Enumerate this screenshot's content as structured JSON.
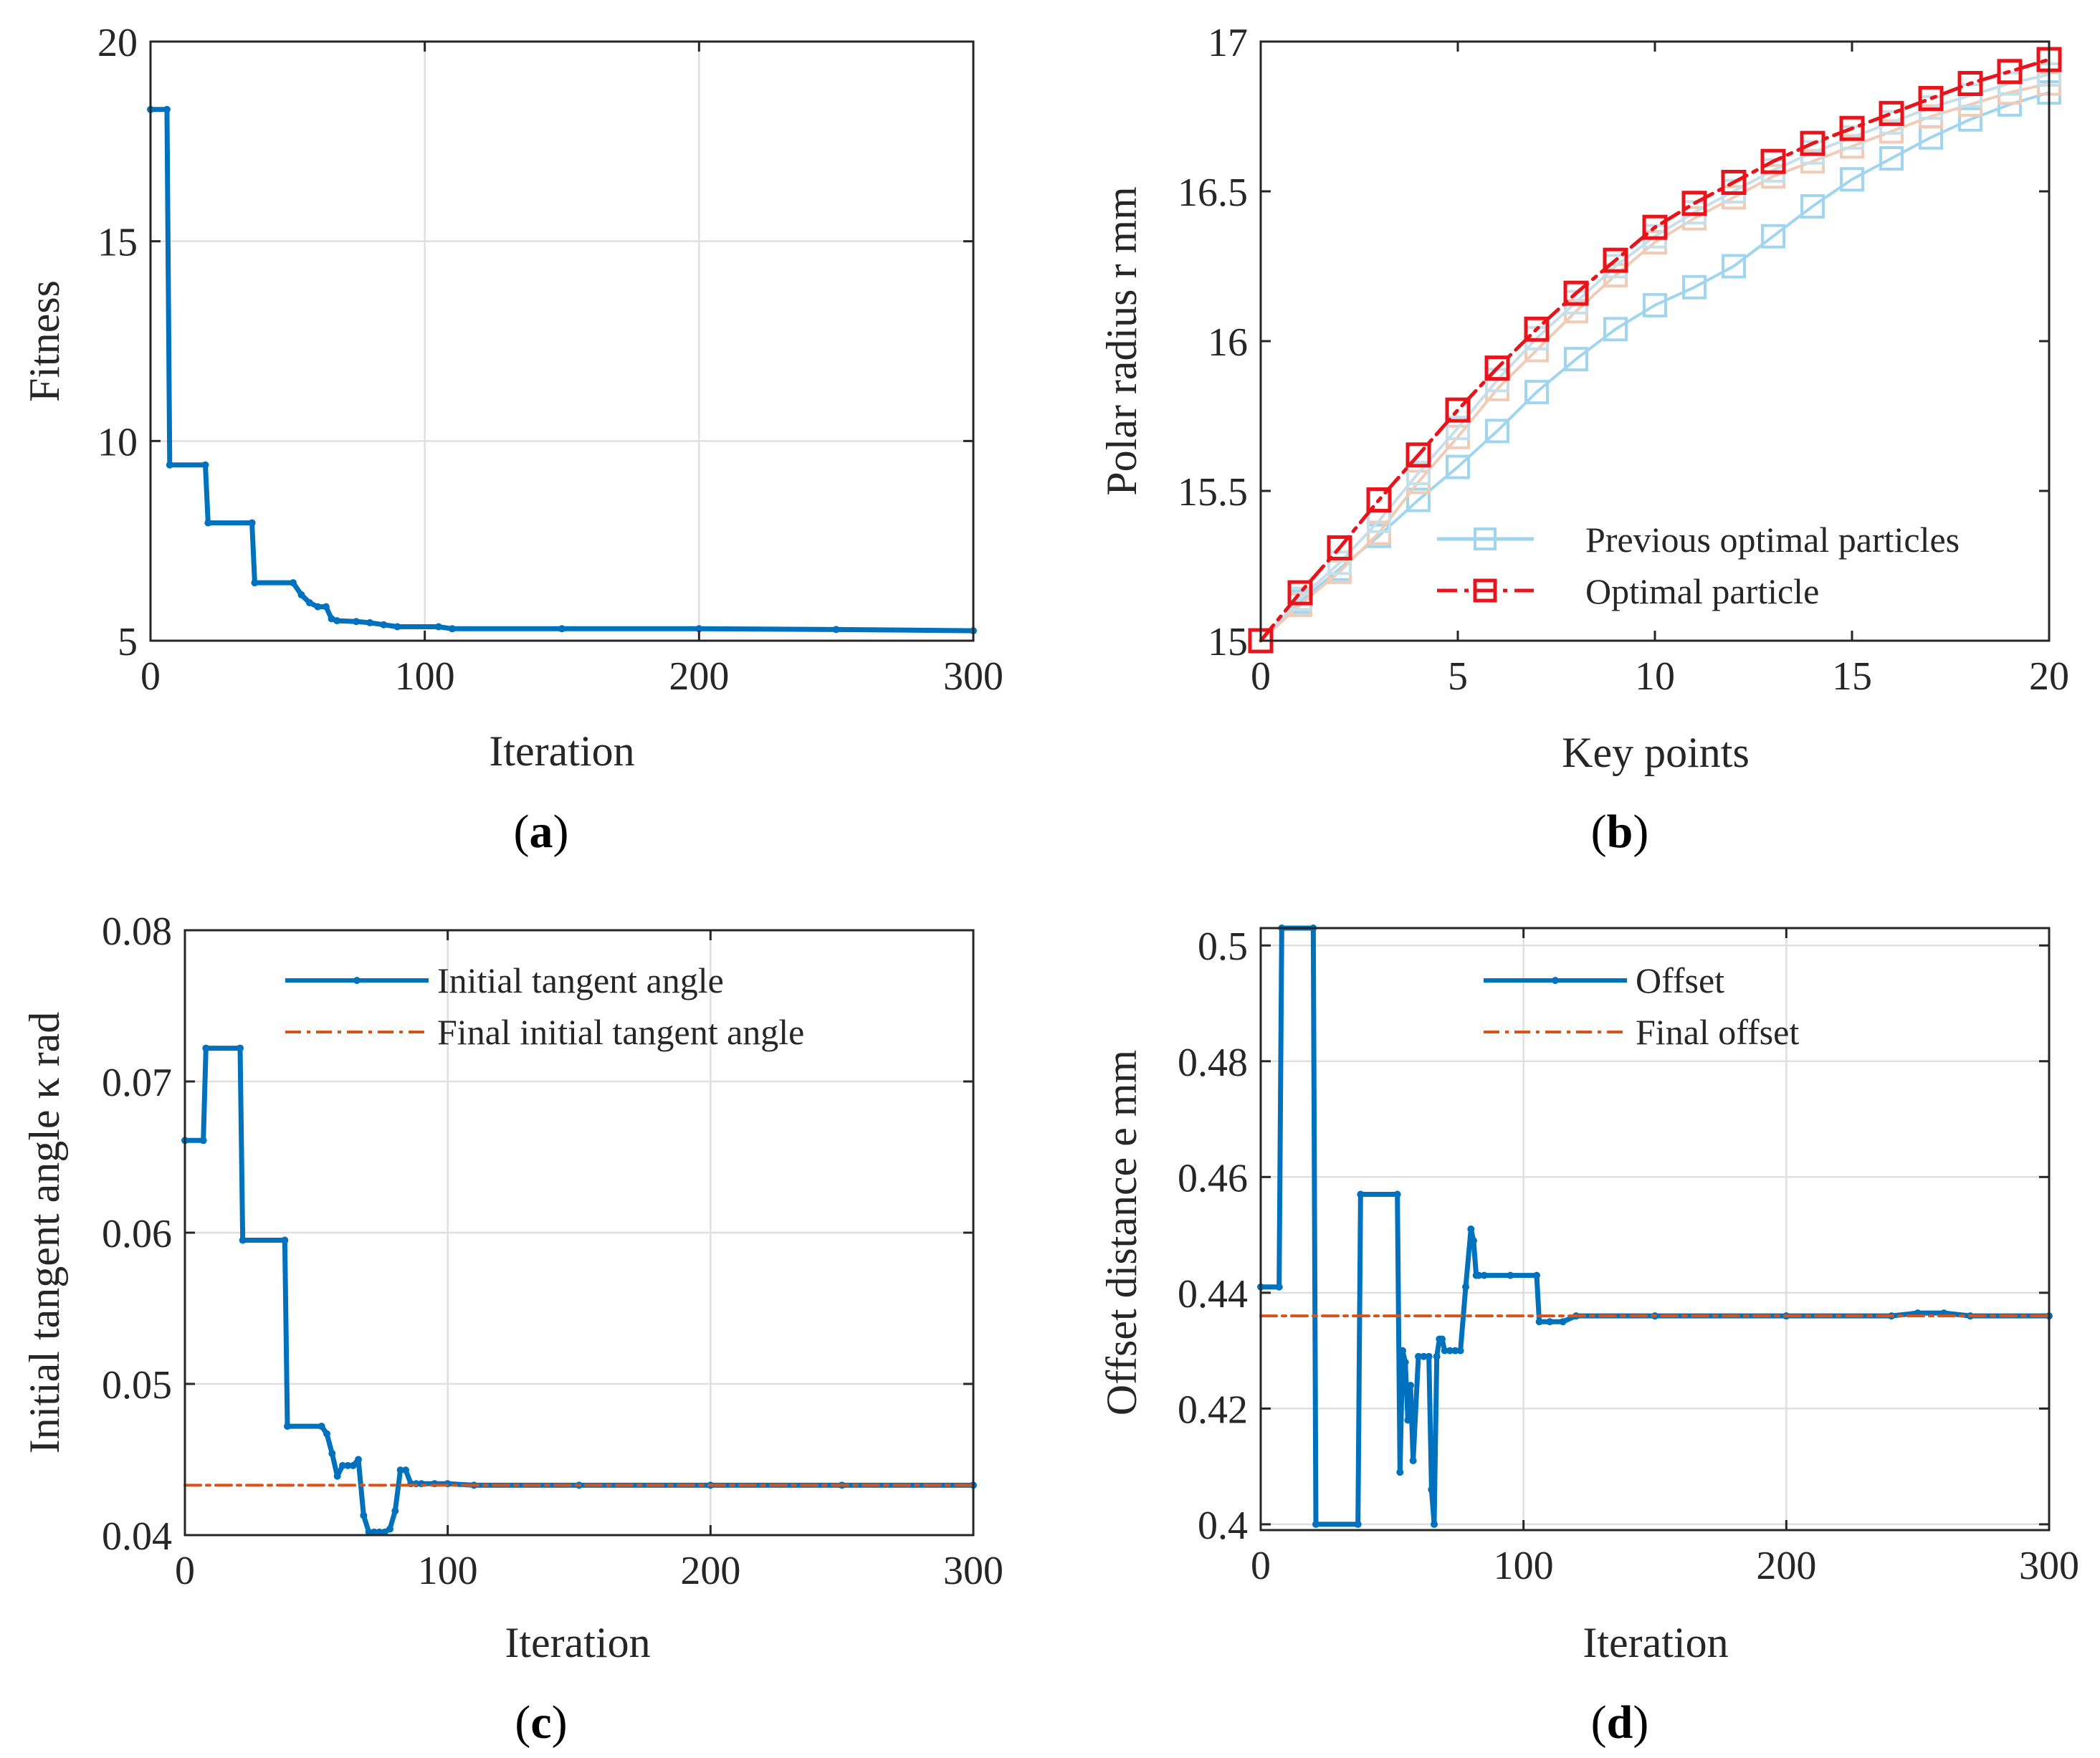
{
  "chart_data": [
    {
      "id": "a",
      "type": "line",
      "caption": "a",
      "xlabel": "Iteration",
      "ylabel": "Fitness",
      "xlim": [
        0,
        300
      ],
      "ylim": [
        5,
        20
      ],
      "xticks": [
        "0",
        "100",
        "200",
        "300"
      ],
      "yticks": [
        "5",
        "10",
        "15",
        "20"
      ],
      "xtick_values": [
        0,
        100,
        200,
        300
      ],
      "ytick_values": [
        5,
        10,
        15,
        20
      ],
      "grid": true,
      "series": [
        {
          "name": "Fitness",
          "color": "#0072bd",
          "x": [
            0,
            6,
            7,
            20,
            21,
            37,
            38,
            52,
            55,
            58,
            61,
            64,
            66,
            68,
            75,
            80,
            85,
            90,
            105,
            110,
            150,
            200,
            250,
            300
          ],
          "y": [
            18.3,
            18.3,
            9.4,
            9.4,
            7.95,
            7.95,
            6.45,
            6.45,
            6.15,
            5.95,
            5.85,
            5.85,
            5.55,
            5.5,
            5.48,
            5.45,
            5.4,
            5.35,
            5.35,
            5.3,
            5.3,
            5.3,
            5.28,
            5.25
          ]
        }
      ]
    },
    {
      "id": "b",
      "type": "line",
      "caption": "b",
      "xlabel": "Key points",
      "ylabel": "Polar radius r  mm",
      "xlim": [
        0,
        20
      ],
      "ylim": [
        15,
        17
      ],
      "xticks": [
        "0",
        "5",
        "10",
        "15",
        "20"
      ],
      "yticks": [
        "15",
        "15.5",
        "16",
        "16.5",
        "17"
      ],
      "xtick_values": [
        0,
        5,
        10,
        15,
        20
      ],
      "ytick_values": [
        15,
        15.5,
        16,
        16.5,
        17
      ],
      "grid": false,
      "legend": [
        "Previous optimal particles",
        "Optimal particle"
      ],
      "legend_location": "bottom-right",
      "series": [
        {
          "name": "Previous optimal particles",
          "color": "#9fd5ef",
          "x": [
            0,
            1,
            2,
            3,
            4,
            5,
            6,
            7,
            8,
            9,
            10,
            11,
            12,
            13,
            14,
            15,
            16,
            17,
            18,
            19,
            20
          ],
          "y": [
            15.0,
            15.13,
            15.24,
            15.35,
            15.47,
            15.58,
            15.7,
            15.83,
            15.94,
            16.04,
            16.12,
            16.18,
            16.25,
            16.35,
            16.45,
            16.54,
            16.61,
            16.68,
            16.74,
            16.79,
            16.83
          ]
        },
        {
          "name": "Previous optimal particles",
          "color": "#f0cbb8",
          "x": [
            0,
            1,
            2,
            3,
            4,
            5,
            6,
            7,
            8,
            9,
            10,
            11,
            12,
            13,
            14,
            15,
            16,
            17,
            18,
            19,
            20
          ],
          "y": [
            15.0,
            15.12,
            15.23,
            15.36,
            15.53,
            15.68,
            15.84,
            15.97,
            16.1,
            16.22,
            16.33,
            16.41,
            16.48,
            16.55,
            16.6,
            16.65,
            16.7,
            16.75,
            16.79,
            16.83,
            16.86
          ]
        },
        {
          "name": "Previous optimal particles",
          "color": "#c6dfe9",
          "x": [
            0,
            1,
            2,
            3,
            4,
            5,
            6,
            7,
            8,
            9,
            10,
            11,
            12,
            13,
            14,
            15,
            16,
            17,
            18,
            19,
            20
          ],
          "y": [
            15.0,
            15.14,
            15.26,
            15.4,
            15.56,
            15.71,
            15.87,
            16.01,
            16.13,
            16.25,
            16.35,
            16.43,
            16.5,
            16.57,
            16.63,
            16.68,
            16.73,
            16.78,
            16.82,
            16.86,
            16.89
          ]
        },
        {
          "name": "Optimal particle",
          "color": "#e8141b",
          "x": [
            0,
            1,
            2,
            3,
            4,
            5,
            6,
            7,
            8,
            9,
            10,
            11,
            12,
            13,
            14,
            15,
            16,
            17,
            18,
            19,
            20
          ],
          "y": [
            15.0,
            15.16,
            15.31,
            15.47,
            15.62,
            15.77,
            15.91,
            16.04,
            16.16,
            16.27,
            16.38,
            16.46,
            16.53,
            16.6,
            16.66,
            16.71,
            16.76,
            16.81,
            16.86,
            16.9,
            16.94
          ]
        }
      ]
    },
    {
      "id": "c",
      "type": "line",
      "caption": "c",
      "xlabel": "Iteration",
      "ylabel": "Initial tangent angle κ  rad",
      "xlim": [
        0,
        300
      ],
      "ylim": [
        0.04,
        0.08
      ],
      "xticks": [
        "0",
        "100",
        "200",
        "300"
      ],
      "yticks": [
        "0.04",
        "0.05",
        "0.06",
        "0.07",
        "0.08"
      ],
      "xtick_values": [
        0,
        100,
        200,
        300
      ],
      "ytick_values": [
        0.04,
        0.05,
        0.06,
        0.07,
        0.08
      ],
      "grid": true,
      "legend": [
        "Initial tangent angle",
        "Final initial tangent angle"
      ],
      "legend_location": "top",
      "series": [
        {
          "name": "Initial tangent angle",
          "color": "#0072bd",
          "x": [
            0,
            7,
            8,
            21,
            22,
            38,
            39,
            52,
            54,
            56,
            58,
            60,
            62,
            64,
            66,
            68,
            70,
            72,
            74,
            76,
            78,
            80,
            82,
            84,
            86,
            88,
            90,
            95,
            100,
            110,
            150,
            200,
            250,
            300
          ],
          "y": [
            0.0661,
            0.0661,
            0.0722,
            0.0722,
            0.0595,
            0.0595,
            0.0472,
            0.0472,
            0.0467,
            0.0454,
            0.0439,
            0.0446,
            0.0446,
            0.0446,
            0.045,
            0.0413,
            0.0402,
            0.0402,
            0.0402,
            0.0402,
            0.0404,
            0.0416,
            0.0443,
            0.0443,
            0.0434,
            0.0434,
            0.0434,
            0.0434,
            0.0434,
            0.0433,
            0.0433,
            0.0433,
            0.0433,
            0.0433
          ]
        },
        {
          "name": "Final initial tangent angle",
          "color": "#d95319",
          "x": [
            0,
            300
          ],
          "y": [
            0.0433,
            0.0433
          ]
        }
      ]
    },
    {
      "id": "d",
      "type": "line",
      "caption": "d",
      "xlabel": "Iteration",
      "ylabel": "Offset distance  e  mm",
      "xlim": [
        0,
        300
      ],
      "ylim": [
        0.399,
        0.503
      ],
      "xticks": [
        "0",
        "100",
        "200",
        "300"
      ],
      "yticks": [
        "0.4",
        "0.42",
        "0.44",
        "0.46",
        "0.48",
        "0.5"
      ],
      "xtick_values": [
        0,
        100,
        200,
        300
      ],
      "ytick_values": [
        0.4,
        0.42,
        0.44,
        0.46,
        0.48,
        0.5
      ],
      "grid": true,
      "legend": [
        "Offset",
        "Final offset"
      ],
      "legend_location": "top",
      "series": [
        {
          "name": "Offset",
          "color": "#0072bd",
          "x": [
            0,
            7,
            8,
            20,
            21,
            37,
            38,
            52,
            53,
            54,
            55,
            56,
            57,
            58,
            60,
            62,
            64,
            65,
            66,
            67,
            68,
            69,
            70,
            72,
            74,
            76,
            78,
            80,
            81,
            82,
            83,
            85,
            95,
            105,
            106,
            110,
            115,
            120,
            150,
            200,
            240,
            250,
            260,
            270,
            300
          ],
          "y": [
            0.441,
            0.441,
            0.503,
            0.503,
            0.4,
            0.4,
            0.457,
            0.457,
            0.409,
            0.43,
            0.428,
            0.418,
            0.424,
            0.411,
            0.429,
            0.429,
            0.429,
            0.406,
            0.4,
            0.429,
            0.432,
            0.432,
            0.43,
            0.43,
            0.43,
            0.43,
            0.441,
            0.451,
            0.449,
            0.443,
            0.443,
            0.443,
            0.443,
            0.443,
            0.435,
            0.435,
            0.435,
            0.436,
            0.436,
            0.436,
            0.436,
            0.4365,
            0.4365,
            0.436,
            0.436
          ]
        },
        {
          "name": "Final offset",
          "color": "#d95319",
          "x": [
            0,
            300
          ],
          "y": [
            0.436,
            0.436
          ]
        }
      ]
    }
  ]
}
